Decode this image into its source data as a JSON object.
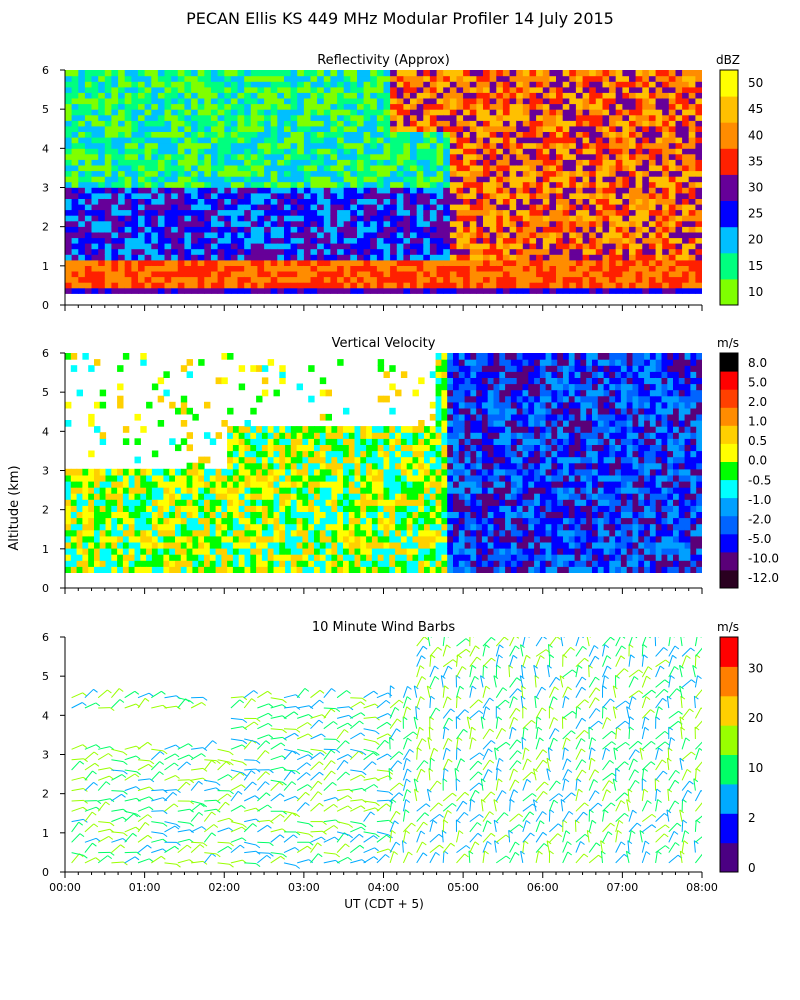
{
  "title": "PECAN Ellis KS 449 MHz Modular Profiler 14 July 2015",
  "ylabel": "Altitude (km)",
  "xlabel": "UT (CDT + 5)",
  "x_ticks": [
    "00:00",
    "01:00",
    "02:00",
    "03:00",
    "04:00",
    "05:00",
    "06:00",
    "07:00",
    "08:00"
  ],
  "y_ticks": [
    "0",
    "1",
    "2",
    "3",
    "4",
    "5",
    "6"
  ],
  "chart_data": [
    {
      "type": "heatmap",
      "title": "Reflectivity (Approx)",
      "xlabel": "UT (CDT + 5)",
      "ylabel": "Altitude (km)",
      "xlim": [
        "00:00",
        "08:00"
      ],
      "ylim": [
        0,
        6
      ],
      "colorbar": {
        "unit": "dBZ",
        "labels": [
          "10",
          "15",
          "20",
          "25",
          "30",
          "35",
          "40",
          "45",
          "50"
        ],
        "colors": [
          "#7fff00",
          "#00ff7f",
          "#00bfff",
          "#0000ff",
          "#660099",
          "#ff2000",
          "#ff8c00",
          "#ffc000",
          "#ffff00"
        ]
      }
    },
    {
      "type": "heatmap",
      "title": "Vertical Velocity",
      "xlabel": "UT (CDT + 5)",
      "ylabel": "Altitude (km)",
      "xlim": [
        "00:00",
        "08:00"
      ],
      "ylim": [
        0,
        6
      ],
      "colorbar": {
        "unit": "m/s",
        "labels": [
          "-12.0",
          "-10.0",
          "-5.0",
          "-2.0",
          "-1.0",
          "-0.5",
          "0.0",
          "0.5",
          "1.0",
          "2.0",
          "5.0",
          "8.0"
        ],
        "colors": [
          "#2a0020",
          "#5a0078",
          "#0000ff",
          "#0064ff",
          "#00a0ff",
          "#00ffff",
          "#00ff00",
          "#ffff00",
          "#ffd000",
          "#ff8c00",
          "#ff4000",
          "#ff0000",
          "#000000"
        ]
      }
    },
    {
      "type": "scatter",
      "title": "10 Minute Wind Barbs",
      "xlabel": "UT (CDT + 5)",
      "ylabel": "Altitude (km)",
      "xlim": [
        "00:00",
        "08:00"
      ],
      "ylim": [
        0,
        6
      ],
      "colorbar": {
        "unit": "m/s",
        "labels": [
          "0",
          "2",
          "10",
          "20",
          "30"
        ],
        "colors": [
          "#4b0082",
          "#0000ff",
          "#00aaff",
          "#00ff66",
          "#99ff00",
          "#ffd000",
          "#ff7f00",
          "#ff0000"
        ]
      }
    }
  ]
}
